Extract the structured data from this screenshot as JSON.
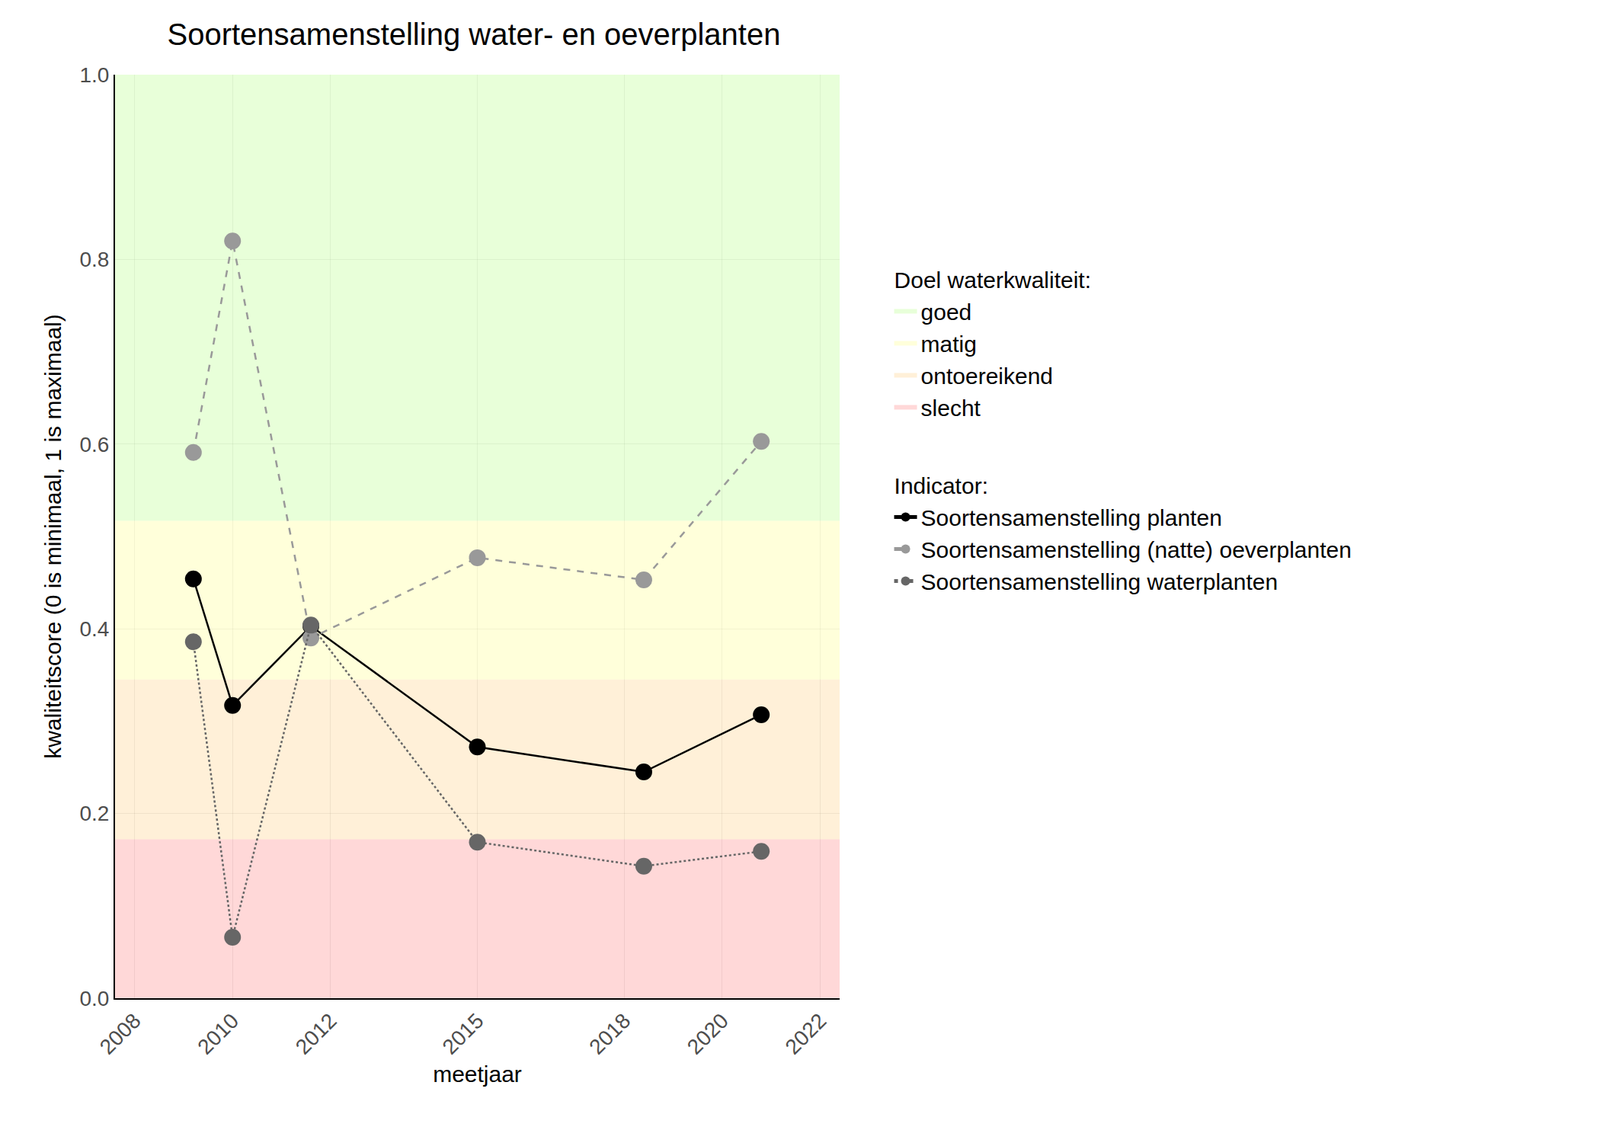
{
  "chart_data": {
    "type": "line",
    "title": "Soortensamenstelling water- en oeverplanten",
    "x_label": "meetjaar",
    "y_label": "kwaliteitscore (0 is minimaal, 1 is maximaal)",
    "x": [
      2009.2,
      2010.0,
      2011.6,
      2015.0,
      2018.4,
      2020.8
    ],
    "series": [
      {
        "name": "Soortensamenstelling planten",
        "color": "#000000",
        "marker": "circle",
        "line_style": "solid",
        "values": [
          0.454,
          0.317,
          0.403,
          0.272,
          0.245,
          0.307
        ]
      },
      {
        "name": "Soortensamenstelling (natte) oeverplanten",
        "color": "#999999",
        "marker": "circle",
        "line_style": "dash",
        "values": [
          0.591,
          0.82,
          0.39,
          0.477,
          0.453,
          0.603
        ]
      },
      {
        "name": "Soortensamenstelling waterplanten",
        "color": "#666666",
        "marker": "circle",
        "line_style": "dot",
        "values": [
          0.386,
          0.066,
          0.404,
          0.169,
          0.143,
          0.159
        ]
      }
    ],
    "xlim": [
      2007.6,
      2022.4
    ],
    "xticks": [
      2008,
      2010,
      2012,
      2015,
      2018,
      2020,
      2022
    ],
    "ylim": [
      0,
      1
    ],
    "yticks": [
      {
        "value": 0,
        "label": "0.0"
      },
      0.2,
      0.4,
      0.6,
      0.8,
      {
        "value": 1,
        "label": "1.0"
      }
    ],
    "grid": true,
    "legend": "right",
    "bands_title": "Doel waterkwaliteit:",
    "legend_title": "Indicator:",
    "bands": [
      {
        "name": "goed",
        "color": "rgba(204,255,170,0.45)",
        "from": 0.517,
        "to": 1.0
      },
      {
        "name": "matig",
        "color": "rgba(255,255,180,0.49)",
        "from": 0.345,
        "to": 0.517
      },
      {
        "name": "ontoereikend",
        "color": "rgba(255,215,150,0.37)",
        "from": 0.172,
        "to": 0.345
      },
      {
        "name": "slecht",
        "color": "rgba(255,150,150,0.37)",
        "from": 0.0,
        "to": 0.172
      }
    ]
  }
}
